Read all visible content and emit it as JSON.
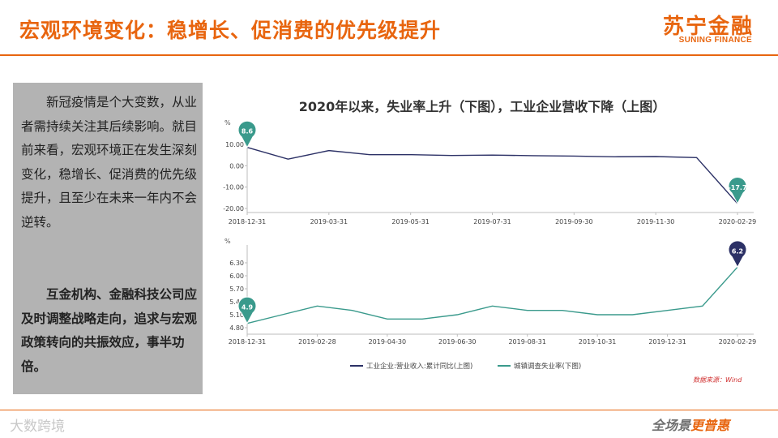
{
  "header": {
    "title": "宏观环境变化：稳增长、促消费的优先级提升",
    "logo_cn": "苏宁金融",
    "logo_en": "SUNING FINANCE"
  },
  "sidebar": {
    "para1": "新冠疫情是个大变数，从业者需持续关注其后续影响。就目前来看，宏观环境正在发生深刻变化，稳增长、促消费的优先级提升，且至少在未来一年内不会逆转。",
    "para2": "互金机构、金融科技公司应及时调整战略走向，追求与宏观政策转向的共振效应，事半功倍。"
  },
  "chart_title": "2020年以来，失业率上升（下图），工业企业营收下降（上图）",
  "source": "数据来源：Wind",
  "footer": {
    "watermark": "大数跨境",
    "slogan_a": "全场景",
    "slogan_b": "更普惠"
  },
  "colors": {
    "accent": "#e8650f",
    "series_top": "#2c3166",
    "series_bottom": "#3a9a8c"
  },
  "chart_data": [
    {
      "type": "line",
      "ylabel": "%",
      "ylim": [
        -20,
        10
      ],
      "yticks": [
        "10.00",
        "0.00",
        "-10.00",
        "-20.00"
      ],
      "xticks": [
        "2018-12-31",
        "2019-03-31",
        "2019-05-31",
        "2019-07-31",
        "2019-09-30",
        "2019-11-30",
        "2020-02-29"
      ],
      "series": [
        {
          "name": "工业企业:营业收入:累计同比(上图)",
          "values": [
            8.6,
            3.1,
            7.1,
            5.2,
            5.2,
            4.8,
            5.0,
            4.7,
            4.5,
            4.2,
            4.3,
            3.8,
            -17.7
          ]
        }
      ],
      "annotations": [
        {
          "label": "8.6",
          "index": 0
        },
        {
          "label": "-17.7",
          "index": 12
        }
      ]
    },
    {
      "type": "line",
      "ylabel": "%",
      "ylim": [
        4.8,
        6.3
      ],
      "yticks": [
        "6.30",
        "6.00",
        "5.70",
        "5.40",
        "5.10",
        "4.80"
      ],
      "xticks": [
        "2018-12-31",
        "2019-02-28",
        "2019-04-30",
        "2019-06-30",
        "2019-08-31",
        "2019-10-31",
        "2019-12-31",
        "2020-02-29"
      ],
      "series": [
        {
          "name": "城镇调查失业率(下图)",
          "values": [
            4.9,
            5.1,
            5.3,
            5.2,
            5.0,
            5.0,
            5.1,
            5.3,
            5.2,
            5.2,
            5.1,
            5.1,
            5.2,
            5.3,
            6.2
          ]
        }
      ],
      "annotations": [
        {
          "label": "4.9",
          "index": 0
        },
        {
          "label": "6.2",
          "index": 14
        }
      ]
    }
  ],
  "legend": [
    "工业企业:营业收入:累计同比(上图)",
    "城镇调查失业率(下图)"
  ]
}
